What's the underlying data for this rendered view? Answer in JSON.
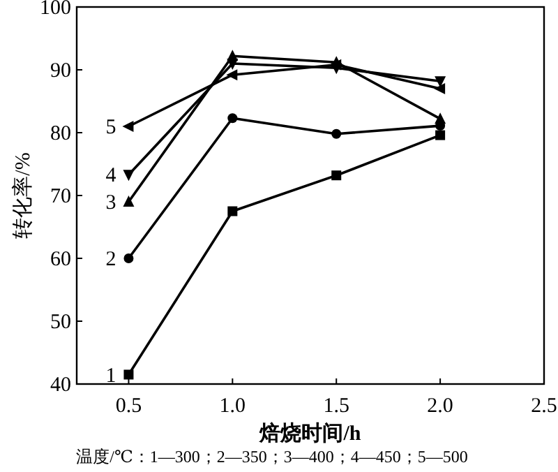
{
  "chart_data": {
    "type": "line",
    "xlabel": "焙烧时间/h",
    "ylabel": "转化率/%",
    "x": [
      0.5,
      1.0,
      1.5,
      2.0
    ],
    "series": [
      {
        "name": "1",
        "color": "#000000",
        "marker": "square",
        "values": [
          41.5,
          67.5,
          73.2,
          79.6
        ]
      },
      {
        "name": "2",
        "color": "#000000",
        "marker": "circle",
        "values": [
          60,
          82.3,
          79.8,
          81.1
        ]
      },
      {
        "name": "3",
        "color": "#000000",
        "marker": "triangle",
        "values": [
          69,
          92.2,
          91.2,
          82.2
        ]
      },
      {
        "name": "4",
        "color": "#000000",
        "marker": "triangle-down",
        "values": [
          73.3,
          91,
          90.3,
          88.2
        ]
      },
      {
        "name": "5",
        "color": "#000000",
        "marker": "triangle-left",
        "values": [
          81,
          89.2,
          90.8,
          87
        ]
      }
    ],
    "xlim": [
      0.25,
      2.5
    ],
    "xticks": [
      {
        "value": 0.5,
        "label": "0.5"
      },
      {
        "value": 1.0,
        "label": "1.0"
      },
      {
        "value": 1.5,
        "label": "1.5"
      },
      {
        "value": 2.0,
        "label": "2.0"
      },
      {
        "value": 2.5,
        "label": "2.5"
      }
    ],
    "ylim": [
      40,
      100
    ],
    "yticks": [
      40,
      50,
      60,
      70,
      80,
      90,
      100
    ],
    "grid": false,
    "legend": false,
    "line_style": "solid",
    "annotations": [
      "温度/℃：1—300；2—350；3—400；4—450；5—500"
    ]
  }
}
